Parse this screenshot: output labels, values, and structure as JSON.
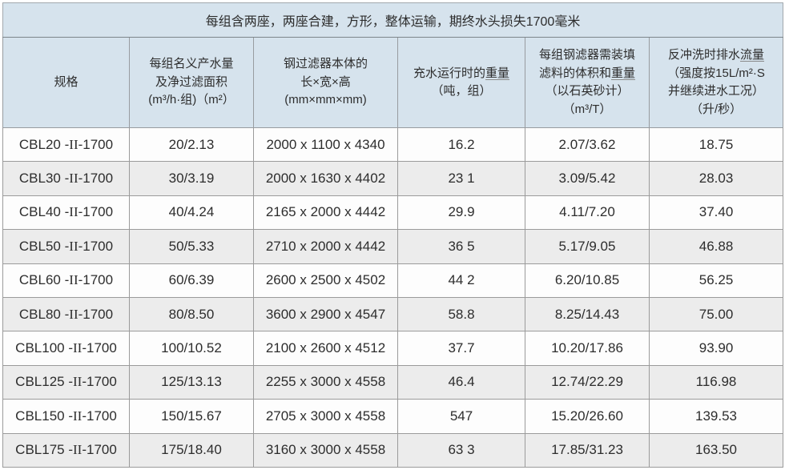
{
  "title": "每组含两座，两座合建，方形，整体运输，期终水头损失1700毫米",
  "colors": {
    "header_bg": "#d6e3ed",
    "row_bg": "#fdfdfd",
    "row_alt_bg": "#ececec",
    "border": "#9b9b9b",
    "title_divider": "#7e868c",
    "text": "#2d2d2d"
  },
  "table": {
    "columns": [
      {
        "id": "spec",
        "lines": [
          [
            {
              "t": "规格"
            }
          ]
        ]
      },
      {
        "id": "capacity",
        "lines": [
          [
            {
              "t": "每组名义产水量"
            }
          ],
          [
            {
              "t": "及净过滤面积"
            }
          ],
          [
            {
              "t": "(m³/h·组)（m²）"
            }
          ]
        ]
      },
      {
        "id": "dimensions",
        "lines": [
          [
            {
              "t": "钢过滤器本体的"
            }
          ],
          [
            {
              "t": "长×宽×高"
            }
          ],
          [
            {
              "t": "(mm×mm×mm)"
            }
          ]
        ]
      },
      {
        "id": "weight",
        "lines": [
          [
            {
              "t": "充水运行时的"
            },
            {
              "t": "重量",
              "u": true
            }
          ],
          [
            {
              "t": "（吨，组）"
            }
          ]
        ]
      },
      {
        "id": "media",
        "lines": [
          [
            {
              "t": "每组钢滤器需装填"
            }
          ],
          [
            {
              "t": "滤料的体积和"
            },
            {
              "t": "重量",
              "u": true
            }
          ],
          [
            {
              "t": "（以石英砂计）"
            }
          ],
          [
            {
              "t": "（m³/T）"
            }
          ]
        ]
      },
      {
        "id": "backwash",
        "lines": [
          [
            {
              "t": "反冲洗时排水"
            },
            {
              "t": "流量",
              "u": true
            }
          ],
          [
            {
              "t": "（强度按15L/m²·S"
            }
          ],
          [
            {
              "t": "并继续进水工况）"
            }
          ],
          [
            {
              "t": "（升/秒）"
            }
          ]
        ]
      }
    ],
    "rows": [
      [
        "CBL20 -II-1700",
        "20/2.13",
        "2000 x 1100 x 4340",
        "16.2",
        "2.07/3.62",
        "18.75"
      ],
      [
        "CBL30 -II-1700",
        "30/3.19",
        "2000 x 1630 x 4402",
        "23 1",
        "3.09/5.42",
        "28.03"
      ],
      [
        "CBL40 -II-1700",
        "40/4.24",
        "2165 x 2000 x 4442",
        "29.9",
        "4.11/7.20",
        "37.40"
      ],
      [
        "CBL50 -II-1700",
        "50/5.33",
        "2710 x 2000 x 4442",
        "36 5",
        "5.17/9.05",
        "46.88"
      ],
      [
        "CBL60 -II-1700",
        "60/6.39",
        "2600 x 2500 x 4502",
        "44 2",
        "6.20/10.85",
        "56.25"
      ],
      [
        "CBL80 -II-1700",
        "80/8.50",
        "3600 x 2900 x 4547",
        "58.8",
        "8.25/14.43",
        "75.00"
      ],
      [
        "CBL100 -II-1700",
        "100/10.52",
        "2100 x 2600 x 4512",
        "37.7",
        "10.20/17.86",
        "93.90"
      ],
      [
        "CBL125 -II-1700",
        "125/13.13",
        "2255 x 3000 x 4558",
        "46.4",
        "12.74/22.29",
        "116.98"
      ],
      [
        "CBL150 -II-1700",
        "150/15.67",
        "2705 x 3000 x 4558",
        "547",
        "15.20/26.60",
        "139.53"
      ],
      [
        "CBL175 -II-1700",
        "175/18.40",
        "3160 x 3000 x 4558",
        "63 3",
        "17.85/31.23",
        "163.50"
      ]
    ]
  }
}
